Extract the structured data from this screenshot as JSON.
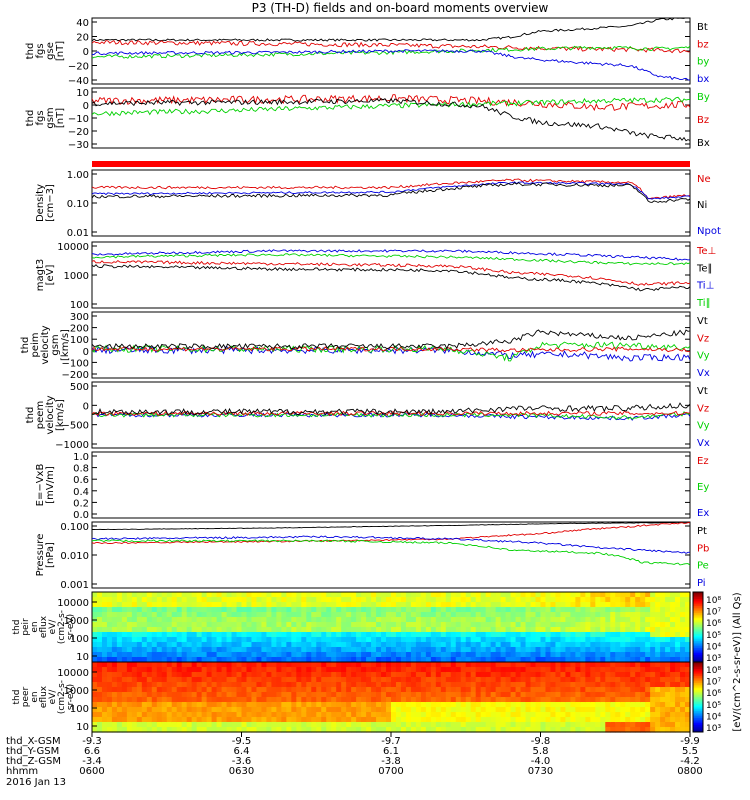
{
  "title": "P3 (TH-D) fields and on-board moments overview",
  "colors": {
    "black": "#000000",
    "red": "#e00000",
    "green": "#00d000",
    "blue": "#0000e0",
    "band": "#ff0000"
  },
  "chart_data": {
    "type": "line",
    "time_axis": {
      "ticks": [
        "0600",
        "0630",
        "0700",
        "0730",
        "0800"
      ],
      "row_labels": [
        "thd_X-GSM",
        "thd_Y-GSM",
        "thd_Z-GSM",
        "hhmm"
      ],
      "x_gsm": [
        "-9.3",
        "-9.5",
        "-9.7",
        "-9.8",
        "-9.9"
      ],
      "y_gsm": [
        "6.6",
        "6.4",
        "6.1",
        "5.8",
        "5.5"
      ],
      "z_gsm": [
        "-3.4",
        "-3.6",
        "-3.8",
        "-4.0",
        "-4.2"
      ],
      "date": "2016 Jan 13"
    },
    "panels": [
      {
        "name": "fgs-gse",
        "ylabel": [
          "thd",
          "fgs",
          "gse",
          "[nT]"
        ],
        "ticks": [
          "40",
          "20",
          "0",
          "−20",
          "−40"
        ],
        "ylim": [
          -45,
          45
        ],
        "legend": [
          {
            "label": "Bt",
            "color": "#000000"
          },
          {
            "label": "bz",
            "color": "#e00000"
          },
          {
            "label": "by",
            "color": "#00d000"
          },
          {
            "label": "bx",
            "color": "#0000e0"
          }
        ],
        "series": [
          {
            "color": "#000000",
            "x": [
              0,
              0.3,
              0.5,
              0.65,
              0.7,
              0.75,
              0.8,
              0.9,
              0.95,
              1.0
            ],
            "y": [
              15,
              15,
              15,
              15,
              19,
              27,
              29,
              34,
              43,
              45
            ],
            "noise": 1.5
          },
          {
            "color": "#e00000",
            "x": [
              0,
              0.3,
              0.5,
              0.7,
              0.8,
              0.9,
              1.0
            ],
            "y": [
              12,
              10,
              8,
              5,
              3,
              2,
              0
            ],
            "noise": 3
          },
          {
            "color": "#00d000",
            "x": [
              0,
              0.2,
              0.5,
              0.7,
              0.85,
              0.95,
              1.0
            ],
            "y": [
              -8,
              -6,
              -2,
              2,
              5,
              3,
              5
            ],
            "noise": 2.5
          },
          {
            "color": "#0000e0",
            "x": [
              0,
              0.3,
              0.5,
              0.65,
              0.72,
              0.8,
              0.9,
              0.95,
              1.0
            ],
            "y": [
              -3,
              -2,
              0,
              0,
              -10,
              -15,
              -20,
              -35,
              -40
            ],
            "noise": 2
          }
        ]
      },
      {
        "name": "fgs-gsm",
        "ylabel": [
          "thd",
          "fgs",
          "gsm",
          "[nT]"
        ],
        "ticks": [
          "10",
          "0",
          "−10",
          "−20",
          "−30"
        ],
        "ylim": [
          -35,
          12
        ],
        "legend": [
          {
            "label": "By",
            "color": "#00d000"
          },
          {
            "label": "Bz",
            "color": "#e00000"
          },
          {
            "label": "Bx",
            "color": "#000000"
          }
        ],
        "series": [
          {
            "color": "#e00000",
            "x": [
              0,
              0.3,
              0.5,
              0.7,
              0.85,
              1.0
            ],
            "y": [
              2,
              3,
              4,
              1,
              -3,
              -1
            ],
            "noise": 3
          },
          {
            "color": "#00d000",
            "x": [
              0,
              0.2,
              0.5,
              0.7,
              0.85,
              1.0
            ],
            "y": [
              -8,
              -6,
              -2,
              0,
              2,
              3
            ],
            "noise": 2
          },
          {
            "color": "#000000",
            "x": [
              0,
              0.3,
              0.5,
              0.65,
              0.7,
              0.75,
              0.85,
              0.92,
              1.0
            ],
            "y": [
              0,
              1,
              2,
              -2,
              -10,
              -15,
              -18,
              -25,
              -28
            ],
            "noise": 2
          }
        ]
      },
      {
        "name": "density",
        "ylabel": [
          "Density",
          "[cm−3]"
        ],
        "ticks": [
          "1.00",
          "0.10",
          "0.01"
        ],
        "ylim": [
          -2,
          0.1
        ],
        "log": true,
        "legend": [
          {
            "label": "Ne",
            "color": "#e00000"
          },
          {
            "label": "Ni",
            "color": "#000000"
          },
          {
            "label": "Npot",
            "color": "#0000e0"
          }
        ],
        "series": [
          {
            "color": "#e00000",
            "x": [
              0,
              0.5,
              0.7,
              0.9,
              0.93,
              1.0
            ],
            "y": [
              0.35,
              0.35,
              0.6,
              0.5,
              0.15,
              0.2
            ],
            "noise": 0.04
          },
          {
            "color": "#0000e0",
            "x": [
              0,
              0.5,
              0.7,
              0.9,
              0.93,
              1.0
            ],
            "y": [
              0.22,
              0.25,
              0.5,
              0.45,
              0.15,
              0.18
            ],
            "noise": 0.03
          },
          {
            "color": "#000000",
            "x": [
              0,
              0.5,
              0.7,
              0.9,
              0.93,
              1.0
            ],
            "y": [
              0.18,
              0.2,
              0.45,
              0.4,
              0.12,
              0.15
            ],
            "noise": 0.05
          }
        ]
      },
      {
        "name": "temperature",
        "ylabel": [
          "magt3",
          "[eV]"
        ],
        "ticks": [
          "10000",
          "1000",
          "100"
        ],
        "ylim": [
          2,
          4.2
        ],
        "log": true,
        "legend": [
          {
            "label": "Te⊥",
            "color": "#e00000"
          },
          {
            "label": "Te∥",
            "color": "#000000"
          },
          {
            "label": "Ti⊥",
            "color": "#0000e0"
          },
          {
            "label": "Ti∥",
            "color": "#00d000"
          }
        ],
        "series": [
          {
            "color": "#0000e0",
            "x": [
              0,
              0.3,
              0.6,
              0.8,
              0.9,
              1.0
            ],
            "y": [
              6000,
              8000,
              8000,
              6000,
              5000,
              4000
            ],
            "noise": 0.04
          },
          {
            "color": "#00d000",
            "x": [
              0,
              0.3,
              0.6,
              0.8,
              0.9,
              1.0
            ],
            "y": [
              5000,
              6000,
              5000,
              3500,
              3000,
              3000
            ],
            "noise": 0.04
          },
          {
            "color": "#e00000",
            "x": [
              0,
              0.3,
              0.6,
              0.7,
              0.8,
              0.92,
              1.0
            ],
            "y": [
              3500,
              3000,
              2500,
              1500,
              1200,
              600,
              700
            ],
            "noise": 0.05
          },
          {
            "color": "#000000",
            "x": [
              0,
              0.3,
              0.6,
              0.7,
              0.8,
              0.92,
              1.0
            ],
            "y": [
              2500,
              2000,
              1800,
              1000,
              800,
              400,
              500
            ],
            "noise": 0.05
          }
        ]
      },
      {
        "name": "peim-velocity",
        "ylabel": [
          "thd",
          "peim",
          "velocity",
          "gsm",
          "[km/s]"
        ],
        "ticks": [
          "300",
          "200",
          "100",
          "0",
          "−100",
          "−200"
        ],
        "ylim": [
          -200,
          300
        ],
        "legend": [
          {
            "label": "Vt",
            "color": "#000000"
          },
          {
            "label": "Vz",
            "color": "#e00000"
          },
          {
            "label": "Vy",
            "color": "#00d000"
          },
          {
            "label": "Vx",
            "color": "#0000e0"
          }
        ],
        "series": [
          {
            "color": "#0000e0",
            "x": [
              0,
              0.6,
              0.7,
              0.8,
              0.9,
              1.0
            ],
            "y": [
              10,
              10,
              -30,
              -20,
              -50,
              -40
            ],
            "noise": 25
          },
          {
            "color": "#00d000",
            "x": [
              0,
              0.6,
              0.7,
              0.75,
              0.9,
              1.0
            ],
            "y": [
              20,
              20,
              -50,
              50,
              50,
              30
            ],
            "noise": 25
          },
          {
            "color": "#e00000",
            "x": [
              0,
              0.6,
              0.7,
              0.9,
              1.0
            ],
            "y": [
              20,
              20,
              10,
              20,
              10
            ],
            "noise": 15
          },
          {
            "color": "#000000",
            "x": [
              0,
              0.6,
              0.7,
              0.75,
              0.8,
              0.9,
              1.0
            ],
            "y": [
              40,
              40,
              80,
              150,
              130,
              100,
              150
            ],
            "noise": 20
          }
        ]
      },
      {
        "name": "peem-velocity",
        "ylabel": [
          "thd",
          "peem",
          "velocity",
          "[km/s]"
        ],
        "ticks": [
          "500",
          "0",
          "−500",
          "−1000"
        ],
        "ylim": [
          -1000,
          1000
        ],
        "legend": [
          {
            "label": "Vt",
            "color": "#000000"
          },
          {
            "label": "Vz",
            "color": "#e00000"
          },
          {
            "label": "Vy",
            "color": "#00d000"
          },
          {
            "label": "Vx",
            "color": "#0000e0"
          }
        ],
        "series": [
          {
            "color": "#0000e0",
            "x": [
              0,
              0.6,
              0.7,
              0.9,
              1.0
            ],
            "y": [
              0,
              0,
              -50,
              -100,
              0
            ],
            "noise": 60
          },
          {
            "color": "#00d000",
            "x": [
              0,
              0.6,
              0.7,
              0.9,
              1.0
            ],
            "y": [
              0,
              0,
              0,
              -80,
              50
            ],
            "noise": 60
          },
          {
            "color": "#e00000",
            "x": [
              0,
              0.6,
              0.7,
              0.9,
              1.0
            ],
            "y": [
              50,
              50,
              50,
              50,
              50
            ],
            "noise": 60
          },
          {
            "color": "#000000",
            "x": [
              0,
              0.6,
              0.7,
              0.9,
              1.0
            ],
            "y": [
              100,
              100,
              200,
              200,
              300
            ],
            "noise": 90
          }
        ]
      },
      {
        "name": "e-field",
        "ylabel": [
          "E=−VxB",
          "[mV/m]"
        ],
        "ticks": [
          "1.0",
          "0.8",
          "0.6",
          "0.4",
          "0.2",
          "0.0"
        ],
        "ylim": [
          0,
          1
        ],
        "legend": [
          {
            "label": "Ez",
            "color": "#e00000"
          },
          {
            "label": "Ey",
            "color": "#00d000"
          },
          {
            "label": "Ex",
            "color": "#0000e0"
          }
        ],
        "series": []
      },
      {
        "name": "pressure",
        "ylabel": [
          "Pressure",
          "[nPa]"
        ],
        "ticks": [
          "0.100",
          "0.010",
          "0.001"
        ],
        "ylim": [
          -3,
          -0.2
        ],
        "log": true,
        "legend": [
          {
            "label": "Pt",
            "color": "#000000"
          },
          {
            "label": "Pb",
            "color": "#e00000"
          },
          {
            "label": "Pe",
            "color": "#00d000"
          },
          {
            "label": "Pi",
            "color": "#0000e0"
          }
        ],
        "series": [
          {
            "color": "#000000",
            "x": [
              0,
              0.3,
              0.6,
              0.8,
              1.0
            ],
            "y": [
              0.3,
              0.35,
              0.45,
              0.55,
              0.6
            ],
            "noise": 0.01
          },
          {
            "color": "#e00000",
            "x": [
              0,
              0.4,
              0.6,
              0.75,
              0.9,
              1.0
            ],
            "y": [
              0.08,
              0.1,
              0.12,
              0.2,
              0.4,
              0.6
            ],
            "noise": 0.03
          },
          {
            "color": "#0000e0",
            "x": [
              0,
              0.4,
              0.6,
              0.75,
              0.85,
              1.0
            ],
            "y": [
              0.12,
              0.15,
              0.12,
              0.08,
              0.05,
              0.03
            ],
            "noise": 0.04
          },
          {
            "color": "#00d000",
            "x": [
              0,
              0.4,
              0.6,
              0.7,
              0.85,
              0.92,
              1.0
            ],
            "y": [
              0.1,
              0.1,
              0.08,
              0.04,
              0.03,
              0.012,
              0.01
            ],
            "noise": 0.04
          }
        ]
      }
    ],
    "spectrograms": [
      {
        "name": "peir-eflux",
        "ylabel": [
          "thd",
          "peir",
          "en",
          "eflux",
          "eV/",
          "(cm2-s-",
          "sr-eV)"
        ],
        "ticks": [
          "10000",
          "1000",
          "100",
          "10"
        ],
        "ylim": [
          5,
          20000
        ],
        "dominant": "cyan-green"
      },
      {
        "name": "peer-eflux",
        "ylabel": [
          "thd",
          "peer",
          "en",
          "eflux",
          "eV/",
          "(cm2-s-",
          "sr-eV)"
        ],
        "ticks": [
          "10000",
          "1000",
          "100",
          "10"
        ],
        "ylim": [
          5,
          20000
        ],
        "dominant": "red-orange"
      }
    ],
    "colorbar": {
      "ticks_top": [
        "10⁸",
        "10⁷",
        "10⁶",
        "10⁵",
        "10⁴",
        "10³"
      ],
      "ticks_bottom": [
        "10⁸",
        "10⁷",
        "10⁶",
        "10⁵",
        "10⁴",
        "10³"
      ],
      "label": "[eV/(cm^2-s-sr-eV)] (All Qs)"
    }
  }
}
